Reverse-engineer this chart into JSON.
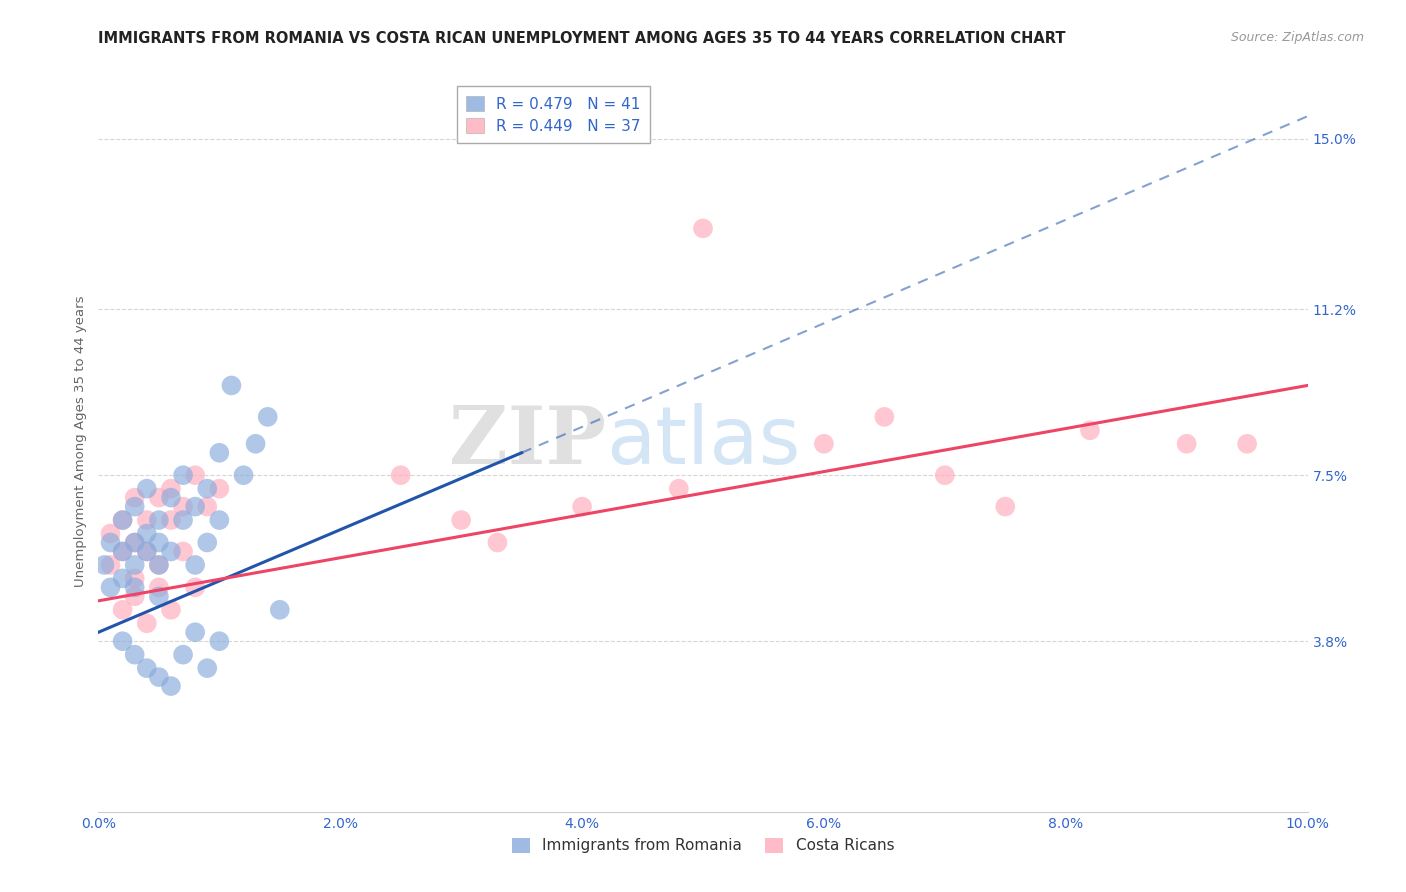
{
  "title": "IMMIGRANTS FROM ROMANIA VS COSTA RICAN UNEMPLOYMENT AMONG AGES 35 TO 44 YEARS CORRELATION CHART",
  "source": "Source: ZipAtlas.com",
  "ylabel": "Unemployment Among Ages 35 to 44 years",
  "xlim": [
    0.0,
    0.1
  ],
  "ylim": [
    0.0,
    0.165
  ],
  "xtick_labels": [
    "0.0%",
    "2.0%",
    "4.0%",
    "6.0%",
    "8.0%",
    "10.0%"
  ],
  "xtick_vals": [
    0.0,
    0.02,
    0.04,
    0.06,
    0.08,
    0.1
  ],
  "ytick_labels": [
    "3.8%",
    "7.5%",
    "11.2%",
    "15.0%"
  ],
  "ytick_vals": [
    0.038,
    0.075,
    0.112,
    0.15
  ],
  "grid_color": "#cccccc",
  "background_color": "#ffffff",
  "watermark_zip": "ZIP",
  "watermark_atlas": "atlas",
  "legend_blue_label": "R = 0.479   N = 41",
  "legend_pink_label": "R = 0.449   N = 37",
  "blue_color": "#88aadd",
  "pink_color": "#ffaabb",
  "blue_line_color": "#2255aa",
  "pink_line_color": "#ee4466",
  "blue_scatter": [
    [
      0.0005,
      0.055
    ],
    [
      0.001,
      0.06
    ],
    [
      0.001,
      0.05
    ],
    [
      0.002,
      0.058
    ],
    [
      0.002,
      0.065
    ],
    [
      0.002,
      0.052
    ],
    [
      0.003,
      0.06
    ],
    [
      0.003,
      0.055
    ],
    [
      0.003,
      0.068
    ],
    [
      0.003,
      0.05
    ],
    [
      0.004,
      0.062
    ],
    [
      0.004,
      0.058
    ],
    [
      0.004,
      0.072
    ],
    [
      0.005,
      0.065
    ],
    [
      0.005,
      0.055
    ],
    [
      0.005,
      0.06
    ],
    [
      0.005,
      0.048
    ],
    [
      0.006,
      0.07
    ],
    [
      0.006,
      0.058
    ],
    [
      0.007,
      0.065
    ],
    [
      0.007,
      0.075
    ],
    [
      0.008,
      0.068
    ],
    [
      0.008,
      0.055
    ],
    [
      0.009,
      0.072
    ],
    [
      0.009,
      0.06
    ],
    [
      0.01,
      0.08
    ],
    [
      0.01,
      0.065
    ],
    [
      0.011,
      0.095
    ],
    [
      0.012,
      0.075
    ],
    [
      0.013,
      0.082
    ],
    [
      0.014,
      0.088
    ],
    [
      0.002,
      0.038
    ],
    [
      0.003,
      0.035
    ],
    [
      0.004,
      0.032
    ],
    [
      0.005,
      0.03
    ],
    [
      0.006,
      0.028
    ],
    [
      0.007,
      0.035
    ],
    [
      0.008,
      0.04
    ],
    [
      0.009,
      0.032
    ],
    [
      0.01,
      0.038
    ],
    [
      0.015,
      0.045
    ]
  ],
  "pink_scatter": [
    [
      0.001,
      0.055
    ],
    [
      0.001,
      0.062
    ],
    [
      0.002,
      0.058
    ],
    [
      0.002,
      0.065
    ],
    [
      0.003,
      0.052
    ],
    [
      0.003,
      0.06
    ],
    [
      0.003,
      0.07
    ],
    [
      0.004,
      0.058
    ],
    [
      0.004,
      0.065
    ],
    [
      0.005,
      0.07
    ],
    [
      0.005,
      0.055
    ],
    [
      0.006,
      0.065
    ],
    [
      0.006,
      0.072
    ],
    [
      0.007,
      0.068
    ],
    [
      0.007,
      0.058
    ],
    [
      0.008,
      0.075
    ],
    [
      0.009,
      0.068
    ],
    [
      0.01,
      0.072
    ],
    [
      0.002,
      0.045
    ],
    [
      0.003,
      0.048
    ],
    [
      0.004,
      0.042
    ],
    [
      0.005,
      0.05
    ],
    [
      0.006,
      0.045
    ],
    [
      0.008,
      0.05
    ],
    [
      0.025,
      0.075
    ],
    [
      0.03,
      0.065
    ],
    [
      0.033,
      0.06
    ],
    [
      0.04,
      0.068
    ],
    [
      0.048,
      0.072
    ],
    [
      0.05,
      0.13
    ],
    [
      0.06,
      0.082
    ],
    [
      0.065,
      0.088
    ],
    [
      0.07,
      0.075
    ],
    [
      0.075,
      0.068
    ],
    [
      0.082,
      0.085
    ],
    [
      0.09,
      0.082
    ],
    [
      0.095,
      0.082
    ]
  ],
  "blue_trend": [
    0.0,
    0.04,
    0.035,
    0.08
  ],
  "blue_dash": [
    0.035,
    0.08,
    0.1,
    0.155
  ],
  "pink_trend": [
    0.0,
    0.047,
    0.1,
    0.095
  ],
  "title_fontsize": 10.5,
  "axis_label_fontsize": 9.5,
  "tick_fontsize": 10,
  "legend_fontsize": 11
}
